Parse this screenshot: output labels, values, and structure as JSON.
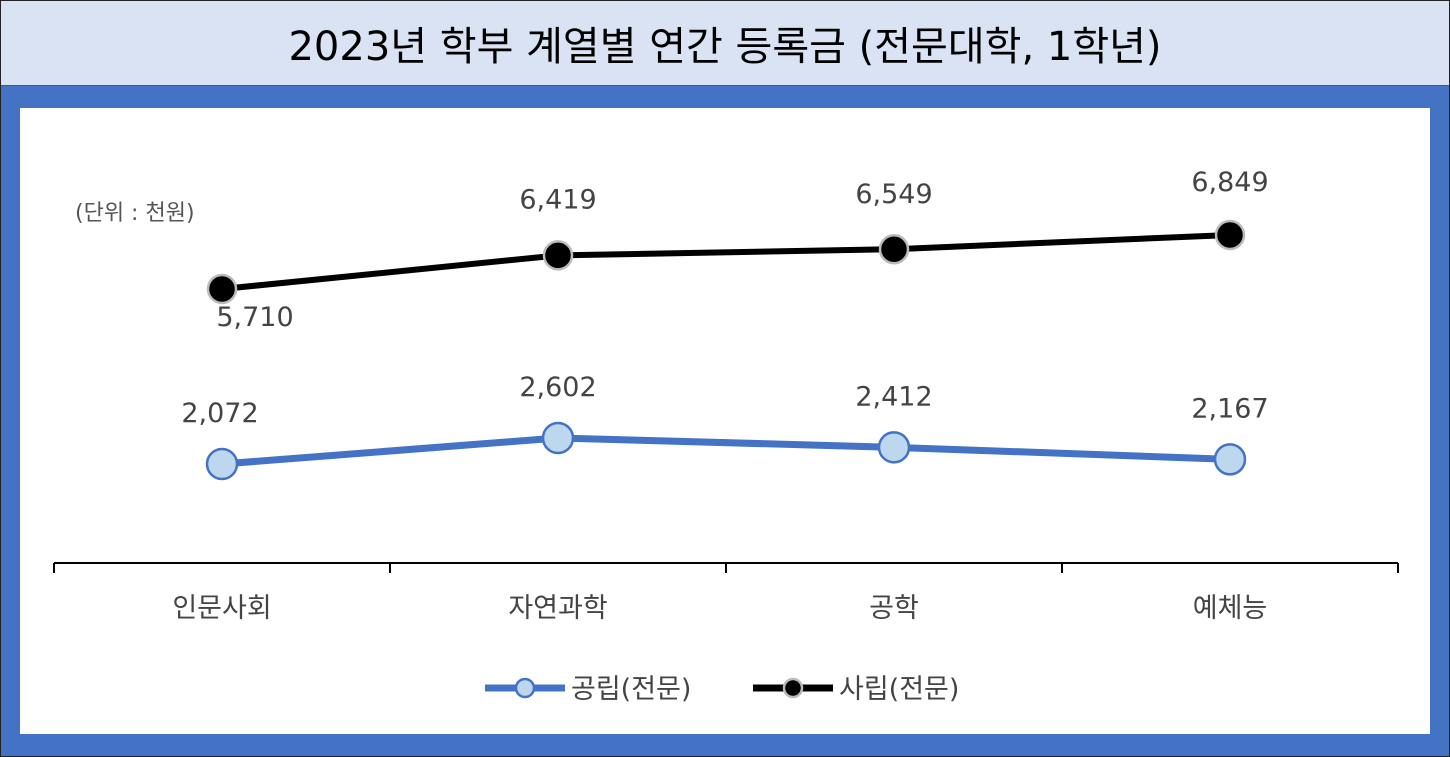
{
  "title": "2023년 학부 계열별 연간 등록금 (전문대학, 1학년)",
  "unit_note": "(단위 : 천원)",
  "colors": {
    "public_line": "#4472c4",
    "public_marker_fill": "#bdd7ee",
    "private_line": "#000000",
    "private_marker_fill": "#000000",
    "title_bg": "#dae3f3",
    "frame": "#4472c4"
  },
  "chart_data": {
    "type": "line",
    "title": "2023년 학부 계열별 연간 등록금 (전문대학, 1학년)",
    "categories": [
      "인문사회",
      "자연과학",
      "공학",
      "예체능"
    ],
    "series": [
      {
        "name": "공립(전문)",
        "values": [
          2072,
          2602,
          2412,
          2167
        ],
        "labels": [
          "2,072",
          "2,602",
          "2,412",
          "2,167"
        ]
      },
      {
        "name": "사립(전문)",
        "values": [
          5710,
          6419,
          6549,
          6849
        ],
        "labels": [
          "5,710",
          "6,419",
          "6,549",
          "6,849"
        ]
      }
    ],
    "legend_position": "bottom",
    "grid": false,
    "y_axis_visible": false
  }
}
